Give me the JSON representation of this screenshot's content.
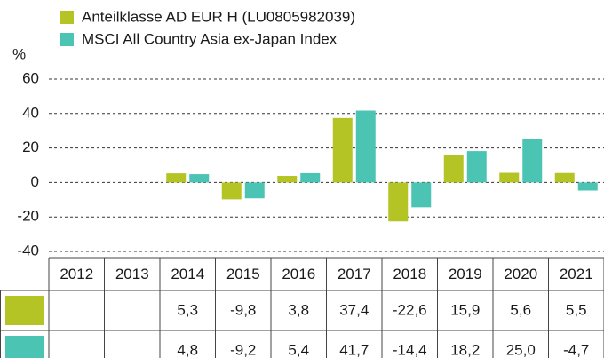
{
  "chart_data": {
    "type": "bar",
    "ylabel": "%",
    "categories": [
      "2012",
      "2013",
      "2014",
      "2015",
      "2016",
      "2017",
      "2018",
      "2019",
      "2020",
      "2021"
    ],
    "series": [
      {
        "name": "Anteilklasse AD EUR H (LU0805982039)",
        "color": "#b4c424",
        "values": [
          null,
          null,
          5.3,
          -9.8,
          3.8,
          37.4,
          -22.6,
          15.9,
          5.6,
          5.5
        ],
        "value_labels": [
          null,
          null,
          "5,3",
          "-9,8",
          "3,8",
          "37,4",
          "-22,6",
          "15,9",
          "5,6",
          "5,5"
        ]
      },
      {
        "name": "MSCI All Country Asia ex-Japan Index",
        "color": "#4cc4b4",
        "values": [
          null,
          null,
          4.8,
          -9.2,
          5.4,
          41.7,
          -14.4,
          18.2,
          25.0,
          -4.7
        ],
        "value_labels": [
          null,
          null,
          "4,8",
          "-9,2",
          "5,4",
          "41,7",
          "-14,4",
          "18,2",
          "25,0",
          "-4,7"
        ]
      }
    ],
    "ylim": [
      -40,
      60
    ],
    "yticks": [
      -40,
      -20,
      0,
      20,
      40,
      60
    ],
    "grid": true
  }
}
